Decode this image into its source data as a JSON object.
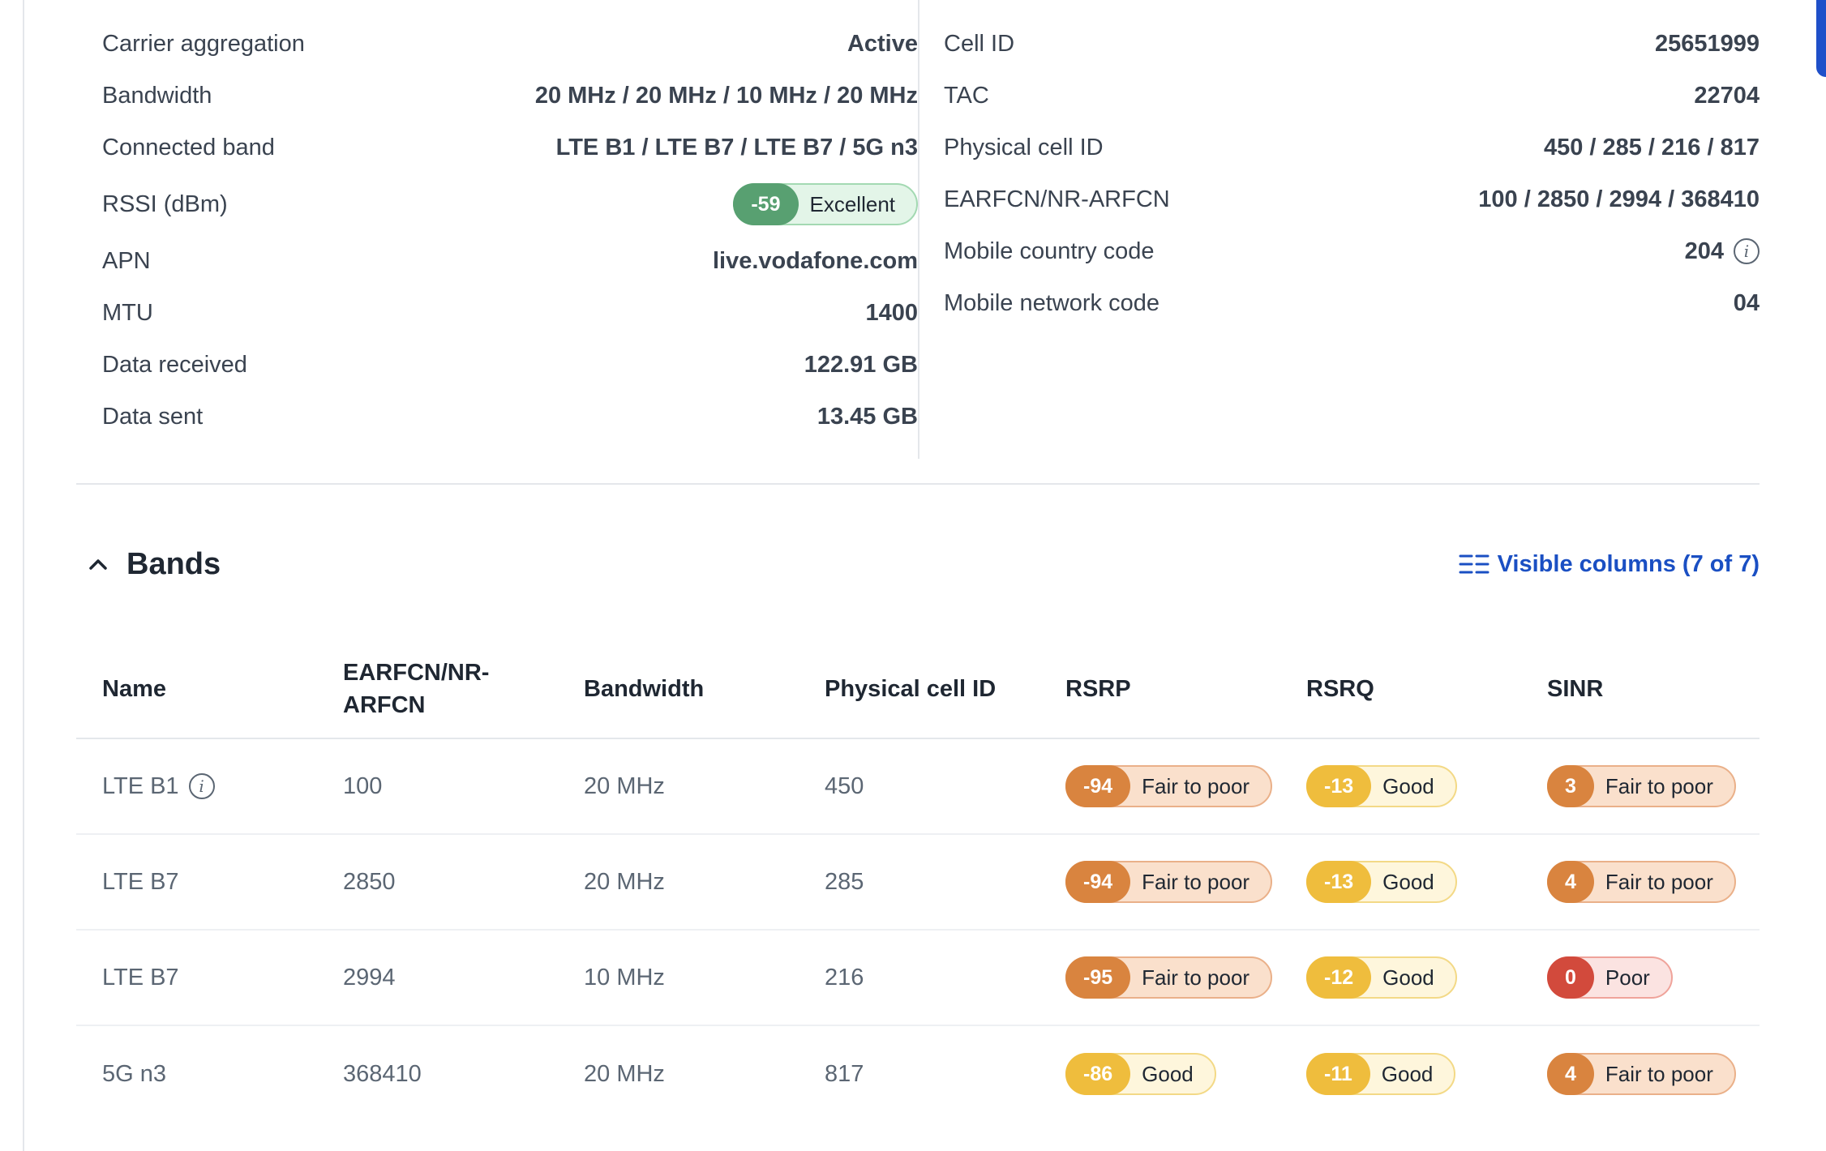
{
  "details": {
    "left": [
      {
        "label": "Carrier aggregation",
        "value": "Active"
      },
      {
        "label": "Bandwidth",
        "value": "20 MHz / 20 MHz / 10 MHz / 20 MHz"
      },
      {
        "label": "Connected band",
        "value": "LTE B1 / LTE B7 / LTE B7 / 5G n3"
      },
      {
        "label": "RSSI (dBm)",
        "value": "-59",
        "status": "Excellent"
      },
      {
        "label": "APN",
        "value": "live.vodafone.com"
      },
      {
        "label": "MTU",
        "value": "1400"
      },
      {
        "label": "Data received",
        "value": "122.91 GB"
      },
      {
        "label": "Data sent",
        "value": "13.45 GB"
      }
    ],
    "right": [
      {
        "label": "Cell ID",
        "value": "25651999"
      },
      {
        "label": "TAC",
        "value": "22704"
      },
      {
        "label": "Physical cell ID",
        "value": "450 / 285 / 216 / 817"
      },
      {
        "label": "EARFCN/NR-ARFCN",
        "value": "100 / 2850 / 2994 / 368410"
      },
      {
        "label": "Mobile country code",
        "value": "204",
        "info_icon": "info-icon"
      },
      {
        "label": "Mobile network code",
        "value": "04"
      }
    ]
  },
  "bands": {
    "title": "Bands",
    "visible_columns_label": "Visible columns (7 of 7)",
    "columns": [
      "Name",
      "EARFCN/NR-ARFCN",
      "Bandwidth",
      "Physical cell ID",
      "RSRP",
      "RSRQ",
      "SINR"
    ],
    "rows": [
      {
        "name": "LTE B1",
        "earfcn": "100",
        "bandwidth": "20 MHz",
        "pci": "450",
        "rsrp": {
          "value": "-94",
          "status": "Fair to poor"
        },
        "rsrq": {
          "value": "-13",
          "status": "Good"
        },
        "sinr": {
          "value": "3",
          "status": "Fair to poor"
        }
      },
      {
        "name": "LTE B7",
        "earfcn": "2850",
        "bandwidth": "20 MHz",
        "pci": "285",
        "rsrp": {
          "value": "-94",
          "status": "Fair to poor"
        },
        "rsrq": {
          "value": "-13",
          "status": "Good"
        },
        "sinr": {
          "value": "4",
          "status": "Fair to poor"
        }
      },
      {
        "name": "LTE B7",
        "earfcn": "2994",
        "bandwidth": "10 MHz",
        "pci": "216",
        "rsrp": {
          "value": "-95",
          "status": "Fair to poor"
        },
        "rsrq": {
          "value": "-12",
          "status": "Good"
        },
        "sinr": {
          "value": "0",
          "status": "Poor"
        }
      },
      {
        "name": "5G n3",
        "earfcn": "368410",
        "bandwidth": "20 MHz",
        "pci": "817",
        "rsrp": {
          "value": "-86",
          "status": "Good"
        },
        "rsrq": {
          "value": "-11",
          "status": "Good"
        },
        "sinr": {
          "value": "4",
          "status": "Fair to poor"
        }
      }
    ]
  },
  "colors": {
    "excellent": "#58a071",
    "fair_to_poor": "#d9843f",
    "good": "#efbd3d",
    "poor": "#d24a3c",
    "link": "#1a4fc3"
  }
}
